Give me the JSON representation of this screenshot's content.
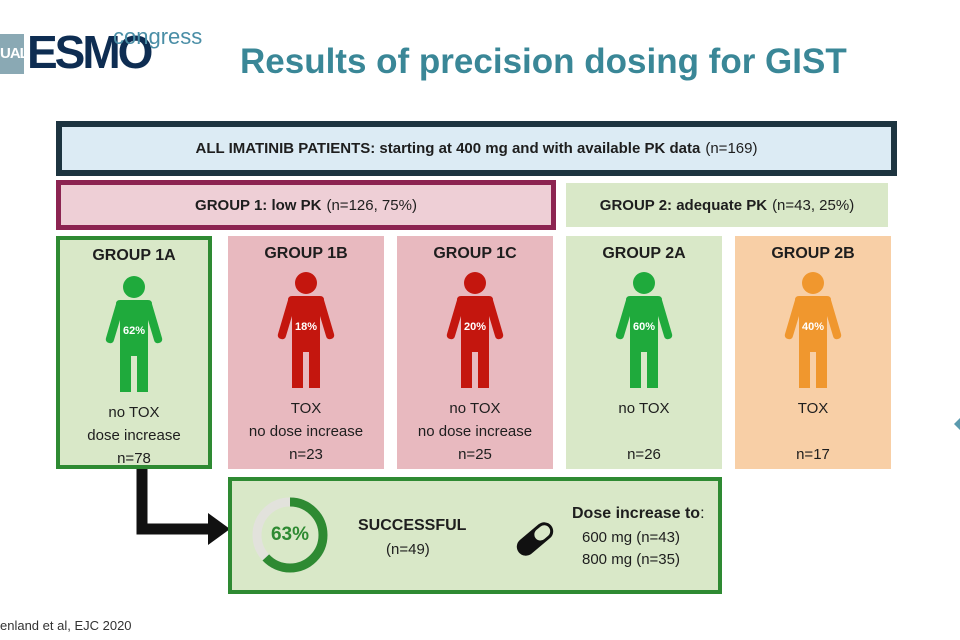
{
  "logo": {
    "prefix": "UAL",
    "brand": "ESMO",
    "suffix": "congress"
  },
  "title": "Results of precision dosing for GIST",
  "all_patients": {
    "bold": "ALL IMATINIB PATIENTS: starting at 400 mg and with available PK data",
    "count": "(n=169)"
  },
  "group1": {
    "bold": "GROUP 1: low PK",
    "count": "(n=126, 75%)"
  },
  "group2": {
    "bold": "GROUP 2: adequate PK",
    "count": "(n=43, 25%)"
  },
  "subgroups": [
    {
      "name": "GROUP 1A",
      "percent": "62%",
      "line1": "no TOX",
      "line2": "dose increase",
      "n": "n=78",
      "color": "#1faa3c"
    },
    {
      "name": "GROUP 1B",
      "percent": "18%",
      "line1": "TOX",
      "line2": "no dose increase",
      "n": "n=23",
      "color": "#c4160e"
    },
    {
      "name": "GROUP 1C",
      "percent": "20%",
      "line1": "no TOX",
      "line2": "no dose increase",
      "n": "n=25",
      "color": "#c4160e"
    },
    {
      "name": "GROUP 2A",
      "percent": "60%",
      "line1": "no TOX",
      "line2": "",
      "n": "n=26",
      "color": "#1faa3c"
    },
    {
      "name": "GROUP 2B",
      "percent": "40%",
      "line1": "TOX",
      "line2": "",
      "n": "n=17",
      "color": "#f0972e"
    }
  ],
  "result": {
    "percent_label": "63%",
    "percent_value": 63,
    "status": "SUCCESSFUL",
    "status_n": "(n=49)",
    "dose_title": "Dose increase to",
    "dose_colon": ":",
    "dose_lines": [
      "600 mg (n=43)",
      "800 mg (n=35)"
    ]
  },
  "citation": "enland et al, EJC 2020",
  "colors": {
    "green": "#2e8a32",
    "teal_title": "#3a8797",
    "dark_border": "#1d3440",
    "maroon": "#8c2451"
  }
}
